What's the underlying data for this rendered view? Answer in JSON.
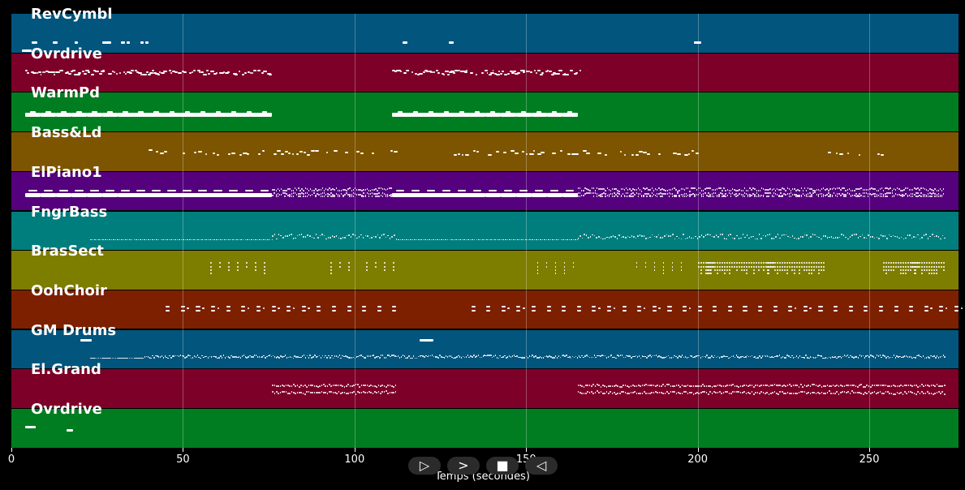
{
  "colors": {
    "blue": "#02557d",
    "crimson": "#7d0028",
    "green": "#007d20",
    "brown": "#7d5500",
    "purple": "#55007d",
    "teal": "#007d7d",
    "olive": "#7d7d00",
    "rust": "#7d2000"
  },
  "timeline": {
    "max_seconds": 276,
    "ticks": [
      0,
      50,
      100,
      150,
      200,
      250
    ],
    "tick_labels": [
      "0",
      "50",
      "100",
      "150",
      "200",
      "250"
    ],
    "axis_title": "Temps (secondes)"
  },
  "tracks": [
    {
      "name": "RevCymbl",
      "color": "#02557d",
      "notes": [
        [
          3,
          6,
          0.92
        ],
        [
          6,
          7.5,
          0.72
        ],
        [
          12,
          13.5,
          0.72
        ],
        [
          18.5,
          19.5,
          0.72
        ],
        [
          26.5,
          29,
          0.72
        ],
        [
          32,
          33,
          0.72
        ],
        [
          33.5,
          34.5,
          0.72
        ],
        [
          37.5,
          38.5,
          0.72
        ],
        [
          39,
          40,
          0.72
        ],
        [
          114,
          115.5,
          0.72
        ],
        [
          127.5,
          129,
          0.72
        ],
        [
          199,
          201,
          0.72
        ]
      ]
    },
    {
      "name": "Ovrdrive",
      "color": "#7d0028",
      "pattern": "dense-small",
      "segments": [
        [
          4,
          76
        ],
        [
          111,
          166
        ]
      ]
    },
    {
      "name": "WarmPd",
      "color": "#007d20",
      "pattern": "thick-bar",
      "segments": [
        [
          4,
          76
        ],
        [
          111,
          165
        ]
      ]
    },
    {
      "name": "Bass&Ld",
      "color": "#7d5500",
      "pattern": "sparse-small",
      "segments": [
        [
          40,
          112
        ],
        [
          129,
          200
        ],
        [
          238,
          255
        ]
      ]
    },
    {
      "name": "ElPiano1",
      "color": "#55007d",
      "pattern": "mixed-bar-dense",
      "segments": [
        [
          4,
          76
        ],
        [
          76,
          111
        ],
        [
          111,
          165
        ],
        [
          165,
          272
        ]
      ]
    },
    {
      "name": "FngrBass",
      "color": "#007d7d",
      "pattern": "dotted-line",
      "segments": [
        [
          23,
          76
        ],
        [
          76,
          112
        ],
        [
          112,
          165
        ],
        [
          165,
          272
        ]
      ]
    },
    {
      "name": "BrasSect",
      "color": "#7d7d00",
      "pattern": "chords",
      "segments": [
        [
          58,
          76
        ],
        [
          93,
          112
        ],
        [
          148,
          165
        ],
        [
          182,
          200
        ],
        [
          200,
          237
        ],
        [
          254,
          272
        ]
      ]
    },
    {
      "name": "OohChoir",
      "color": "#7d2000",
      "pattern": "spaced-blocks",
      "segments": [
        [
          45,
          112
        ],
        [
          134,
          276
        ]
      ]
    },
    {
      "name": "GM Drums",
      "color": "#02557d",
      "pattern": "drums",
      "segments": [
        [
          23,
          272
        ]
      ],
      "extra_notes": [
        [
          20,
          23.5,
          0.25
        ],
        [
          119,
          123,
          0.25
        ]
      ]
    },
    {
      "name": "El.Grand",
      "color": "#7d0028",
      "pattern": "dense-two-row",
      "segments": [
        [
          76,
          112
        ],
        [
          165,
          272
        ]
      ]
    },
    {
      "name": "Ovrdrive",
      "color": "#007d20",
      "notes": [
        [
          4,
          7,
          0.45
        ],
        [
          16,
          18,
          0.52
        ]
      ]
    }
  ],
  "controls": [
    {
      "name": "play-button",
      "glyph": "▷"
    },
    {
      "name": "next-button",
      "glyph": ">"
    },
    {
      "name": "stop-button",
      "glyph": "■"
    },
    {
      "name": "back-button",
      "glyph": "◁"
    }
  ]
}
